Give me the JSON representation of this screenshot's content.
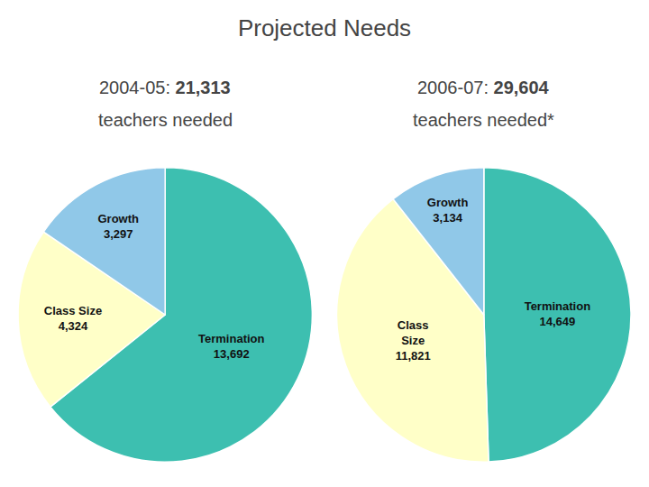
{
  "title": "Projected Needs",
  "chart_data": [
    {
      "type": "pie",
      "title": "2004-05: 21,313",
      "subtitle": "teachers needed",
      "categories": [
        "Termination",
        "Class Size",
        "Growth"
      ],
      "values": [
        13692,
        4324,
        3297
      ],
      "value_labels": [
        "13,692",
        "4,324",
        "3,297"
      ],
      "colors": [
        "#3DBFB0",
        "#FFFFC8",
        "#90C8E8"
      ],
      "data_labels": true
    },
    {
      "type": "pie",
      "title": "2006-07: 29,604",
      "subtitle": "teachers needed*",
      "categories": [
        "Termination",
        "Class\nSize",
        "Growth"
      ],
      "values": [
        14649,
        11821,
        3134
      ],
      "value_labels": [
        "14,649",
        "11,821",
        "3,134"
      ],
      "colors": [
        "#3DBFB0",
        "#FFFFC8",
        "#90C8E8"
      ],
      "data_labels": true
    }
  ]
}
